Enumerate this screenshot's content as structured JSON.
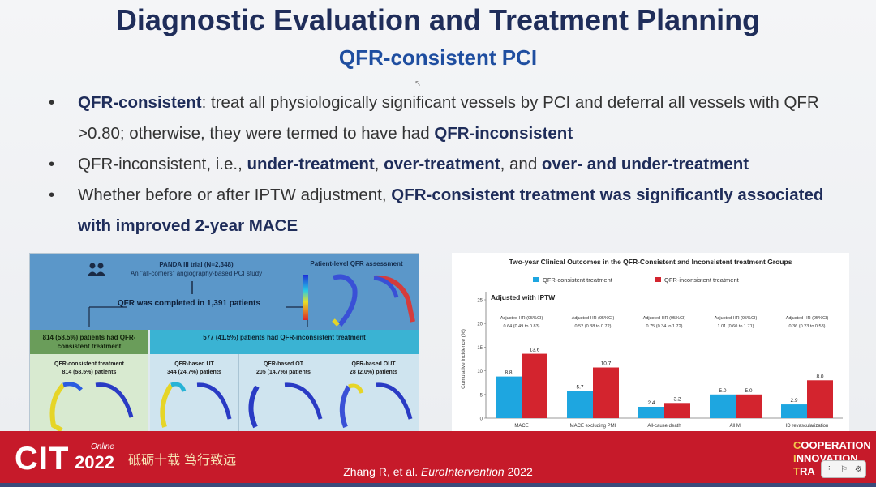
{
  "slide": {
    "title": "Diagnostic Evaluation and Treatment Planning",
    "subtitle": "QFR-consistent PCI",
    "bullets": [
      {
        "b1": "QFR-consistent",
        "t1": ": treat all physiologically significant vessels by PCI and deferral all vessels with QFR >0.80; otherwise, they were termed to have had ",
        "b2": "QFR-inconsistent"
      },
      {
        "t1": "QFR-inconsistent, i.e., ",
        "b1": "under-treatment",
        "t2": ", ",
        "b2": "over-treatment",
        "t3": ", and ",
        "b3": "over- and under-treatment"
      },
      {
        "t1": "Whether before or after IPTW adjustment, ",
        "b1": "QFR-consistent treatment was significantly associated with improved 2-year MACE"
      }
    ]
  },
  "flow": {
    "trial": "PANDA III trial (N=2,348)",
    "trial_desc": "An \"all-comers\" angiography-based PCI study",
    "completed": "QFR was completed in 1,391 patients",
    "patient_level": "Patient-level QFR assessment",
    "consistent_header": "814 (58.5%) patients had QFR-consistent treatment",
    "inconsistent_header": "577 (41.5%) patients had QFR-inconsistent treatment",
    "cells": [
      {
        "title": "QFR-consistent treatment",
        "count": "814 (58.5%) patients"
      },
      {
        "title": "QFR-based UT",
        "count": "344 (24.7%) patients"
      },
      {
        "title": "QFR-based OT",
        "count": "205 (14.7%) patients"
      },
      {
        "title": "QFR-based OUT",
        "count": "28 (2.0%) patients"
      }
    ]
  },
  "chart_data": {
    "type": "bar",
    "title": "Two-year Clinical Outcomes in the QFR-Consistent and Inconsistent treatment Groups",
    "annotation": "Adjusted with IPTW",
    "ylabel": "Cumulative incidence (%)",
    "ylim": [
      0,
      25
    ],
    "yticks": [
      0,
      5,
      10,
      15,
      20,
      25
    ],
    "categories": [
      "MACE",
      "MACE excluding PMI",
      "All-cause death",
      "All MI",
      "ID revascularization"
    ],
    "series": [
      {
        "name": "QFR-consistent treatment",
        "color": "#1ea6e0",
        "values": [
          8.8,
          5.7,
          2.4,
          5.0,
          2.9
        ]
      },
      {
        "name": "QFR-inconsistent treatment",
        "color": "#d3242e",
        "values": [
          13.6,
          10.7,
          3.2,
          5.0,
          8.0
        ]
      }
    ],
    "hr_labels": [
      {
        "label": "Adjusted HR (95%CI)",
        "value": "0.64 (0.49 to 0.83)"
      },
      {
        "label": "Adjusted HR (95%CI)",
        "value": "0.52 (0.38 to 0.72)"
      },
      {
        "label": "Adjusted HR (95%CI)",
        "value": "0.75 (0.34 to 1.72)"
      },
      {
        "label": "Adjusted HR (95%CI)",
        "value": "1.01 (0.60 to 1.71)"
      },
      {
        "label": "Adjusted HR (95%CI)",
        "value": "0.36 (0.23 to 0.58)"
      }
    ]
  },
  "footer": {
    "logo": "CIT",
    "year": "2022",
    "online": "Online",
    "slogan": "砥砺十载 笃行致远",
    "ref_authors": "Zhang R, et al. ",
    "ref_journal": "EuroIntervention",
    "ref_year": " 2022",
    "coop": [
      "C",
      "OOPERATION",
      "I",
      "NNOVATION",
      "T",
      "RANSLATION"
    ],
    "coop_visible": [
      "COOPERATION",
      "INNOVATION",
      "TRA"
    ]
  }
}
